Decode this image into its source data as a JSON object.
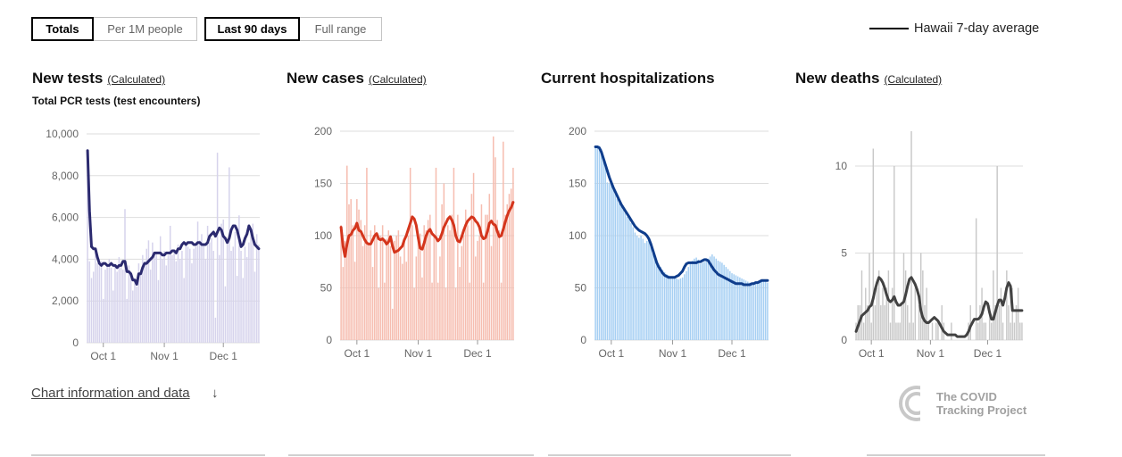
{
  "controls": {
    "metric": {
      "options": [
        "Totals",
        "Per 1M people"
      ],
      "selected": 0
    },
    "range": {
      "options": [
        "Last 90 days",
        "Full range"
      ],
      "selected": 0
    }
  },
  "legend": {
    "label": "Hawaii 7-day average",
    "color": "#000000"
  },
  "footer": {
    "info_link": "Chart information and data",
    "arrow": "↓",
    "brand": "The COVID Tracking Project"
  },
  "chart_data": [
    {
      "id": "tests",
      "type": "bar",
      "title": "New tests",
      "note": "(Calculated)",
      "subtitle": "Total PCR tests (test encounters)",
      "ylim": [
        0,
        10000
      ],
      "yticks": [
        0,
        2000,
        4000,
        6000,
        8000,
        10000
      ],
      "ytick_labels": [
        "0",
        "2,000",
        "4,000",
        "6,000",
        "8,000",
        "10,000"
      ],
      "xticks": [
        {
          "day": 8,
          "label": "Oct 1"
        },
        {
          "day": 39,
          "label": "Nov 1"
        },
        {
          "day": 69,
          "label": "Dec 1"
        }
      ],
      "bar_color": "#d6d3ec",
      "line_color": "#2b2a6f",
      "values": [
        9200,
        3900,
        3100,
        3400,
        4400,
        3800,
        3700,
        3900,
        2100,
        3500,
        3700,
        4000,
        3600,
        2500,
        3700,
        3400,
        4100,
        3800,
        3500,
        6400,
        2100,
        3700,
        3200,
        2500,
        3100,
        2700,
        3800,
        3300,
        4200,
        3900,
        4500,
        4900,
        3500,
        4800,
        4300,
        4300,
        3000,
        5100,
        4000,
        4400,
        3700,
        4200,
        5600,
        4200,
        4300,
        3900,
        4700,
        4000,
        4400,
        3100,
        4700,
        4600,
        4500,
        3800,
        4500,
        4600,
        5800,
        4900,
        5200,
        4700,
        4000,
        5600,
        4800,
        5000,
        4400,
        1200,
        9100,
        4200,
        5700,
        5900,
        2700,
        4800,
        8400,
        4400,
        4600,
        5300,
        3200,
        6100,
        4400,
        3100,
        4600,
        4100,
        4800,
        5200,
        5700,
        3400,
        5200,
        4700
      ],
      "avg": [
        9200,
        6300,
        4600,
        4500,
        4500,
        4100,
        3800,
        3700,
        3800,
        3800,
        3700,
        3700,
        3800,
        3700,
        3700,
        3600,
        3700,
        3700,
        3900,
        3900,
        3400,
        3400,
        3300,
        3000,
        3000,
        2800,
        3300,
        3300,
        3600,
        3800,
        3800,
        3900,
        4000,
        4100,
        4300,
        4300,
        4300,
        4300,
        4200,
        4200,
        4300,
        4300,
        4300,
        4400,
        4400,
        4300,
        4500,
        4500,
        4700,
        4800,
        4700,
        4800,
        4800,
        4800,
        4700,
        4700,
        4800,
        4800,
        4700,
        4700,
        4700,
        4800,
        5100,
        5200,
        5300,
        5100,
        5300,
        5500,
        5400,
        5100,
        5000,
        4800,
        5000,
        5400,
        5600,
        5600,
        5400,
        5000,
        4600,
        4700,
        5000,
        5200,
        5600,
        5400,
        5000,
        4700,
        4600,
        4500
      ]
    },
    {
      "id": "cases",
      "type": "bar",
      "title": "New cases",
      "note": "(Calculated)",
      "ylim": [
        0,
        200
      ],
      "yticks": [
        0,
        50,
        100,
        150,
        200
      ],
      "ytick_labels": [
        "0",
        "50",
        "100",
        "150",
        "200"
      ],
      "xticks": [
        {
          "day": 8,
          "label": "Oct 1"
        },
        {
          "day": 39,
          "label": "Nov 1"
        },
        {
          "day": 69,
          "label": "Dec 1"
        }
      ],
      "bar_color": "#f6bdb0",
      "line_color": "#d4351c",
      "values": [
        110,
        70,
        95,
        167,
        130,
        135,
        110,
        75,
        135,
        125,
        115,
        90,
        110,
        165,
        92,
        105,
        70,
        110,
        100,
        50,
        100,
        110,
        55,
        97,
        105,
        90,
        30,
        95,
        100,
        105,
        80,
        73,
        95,
        75,
        100,
        165,
        110,
        50,
        80,
        95,
        102,
        60,
        110,
        105,
        115,
        120,
        55,
        100,
        165,
        55,
        80,
        130,
        150,
        50,
        110,
        105,
        120,
        165,
        50,
        120,
        70,
        90,
        100,
        125,
        110,
        55,
        140,
        160,
        80,
        95,
        100,
        130,
        55,
        120,
        120,
        140,
        90,
        195,
        175,
        115,
        105,
        55,
        190,
        120,
        130,
        140,
        145,
        165
      ],
      "avg": [
        108,
        90,
        80,
        92,
        100,
        101,
        105,
        107,
        112,
        105,
        104,
        100,
        96,
        93,
        92,
        92,
        96,
        100,
        102,
        97,
        96,
        97,
        95,
        92,
        94,
        99,
        90,
        84,
        85,
        86,
        88,
        90,
        96,
        100,
        106,
        112,
        118,
        116,
        110,
        98,
        88,
        87,
        93,
        100,
        104,
        106,
        102,
        100,
        98,
        95,
        97,
        102,
        108,
        112,
        116,
        118,
        115,
        110,
        100,
        95,
        94,
        99,
        105,
        110,
        114,
        116,
        118,
        117,
        114,
        112,
        108,
        100,
        97,
        98,
        104,
        112,
        114,
        111,
        110,
        104,
        99,
        100,
        106,
        113,
        119,
        124,
        127,
        132
      ]
    },
    {
      "id": "hospitalizations",
      "type": "bar",
      "title": "Current hospitalizations",
      "ylim": [
        0,
        200
      ],
      "yticks": [
        0,
        50,
        100,
        150,
        200
      ],
      "ytick_labels": [
        "0",
        "50",
        "100",
        "150",
        "200"
      ],
      "xticks": [
        {
          "day": 8,
          "label": "Oct 1"
        },
        {
          "day": 39,
          "label": "Nov 1"
        },
        {
          "day": 69,
          "label": "Dec 1"
        }
      ],
      "bar_color": "#a6cff3",
      "line_color": "#0f3d8c",
      "values": [
        186,
        186,
        186,
        183,
        175,
        167,
        151,
        150,
        150,
        148,
        140,
        135,
        131,
        128,
        125,
        122,
        118,
        116,
        112,
        108,
        103,
        100,
        98,
        100,
        97,
        93,
        95,
        97,
        89,
        83,
        78,
        75,
        72,
        70,
        67,
        65,
        63,
        62,
        61,
        60,
        60,
        59,
        58,
        59,
        60,
        63,
        66,
        70,
        74,
        76,
        78,
        79,
        77,
        73,
        74,
        75,
        76,
        78,
        80,
        82,
        80,
        78,
        76,
        75,
        74,
        72,
        70,
        68,
        66,
        64,
        63,
        62,
        61,
        60,
        59,
        58,
        57,
        56,
        55,
        54,
        55,
        56,
        55,
        55,
        58,
        57,
        56,
        55
      ],
      "avg": [
        185,
        185,
        184,
        180,
        174,
        168,
        162,
        156,
        151,
        146,
        142,
        138,
        134,
        130,
        127,
        124,
        121,
        118,
        115,
        112,
        109,
        107,
        105,
        104,
        103,
        102,
        100,
        97,
        92,
        86,
        80,
        74,
        70,
        67,
        64,
        62,
        61,
        60,
        60,
        60,
        60,
        61,
        62,
        64,
        66,
        70,
        73,
        74,
        74,
        74,
        74,
        74,
        75,
        75,
        76,
        77,
        77,
        76,
        73,
        70,
        67,
        65,
        63,
        62,
        61,
        60,
        59,
        58,
        57,
        56,
        55,
        54,
        54,
        54,
        54,
        53,
        53,
        53,
        53,
        54,
        54,
        55,
        55,
        56,
        57,
        57,
        57,
        57
      ]
    },
    {
      "id": "deaths",
      "type": "bar",
      "title": "New deaths",
      "note": "(Calculated)",
      "ylim": [
        0,
        12
      ],
      "yticks": [
        0,
        5,
        10
      ],
      "ytick_labels": [
        "0",
        "5",
        "10"
      ],
      "xticks": [
        {
          "day": 8,
          "label": "Oct 1"
        },
        {
          "day": 39,
          "label": "Nov 1"
        },
        {
          "day": 69,
          "label": "Dec 1"
        }
      ],
      "bar_color": "#c8c8c8",
      "line_color": "#424242",
      "values": [
        1,
        2,
        2,
        4,
        1,
        3,
        2,
        5,
        1,
        11,
        2,
        3,
        4,
        2,
        3,
        2,
        3,
        4,
        1,
        3,
        10,
        1,
        1,
        1,
        2,
        5,
        4,
        2,
        1,
        14,
        1,
        3,
        0,
        2,
        5,
        4,
        2,
        3,
        1,
        0,
        1,
        0,
        1,
        1,
        0,
        2,
        1,
        0,
        0,
        0,
        1,
        0,
        0,
        0,
        0,
        0,
        0,
        0,
        0,
        1,
        2,
        0,
        0,
        7,
        1,
        2,
        3,
        1,
        1,
        0,
        2,
        1,
        4,
        2,
        10,
        2,
        3,
        1,
        0,
        4,
        2,
        1,
        3,
        1,
        2,
        3,
        1,
        1
      ],
      "avg": [
        0.5,
        0.8,
        1.1,
        1.4,
        1.5,
        1.6,
        1.7,
        1.9,
        2.0,
        2.4,
        2.9,
        3.3,
        3.6,
        3.5,
        3.3,
        3.0,
        2.6,
        2.3,
        2.2,
        2.3,
        2.5,
        2.2,
        2.0,
        2.0,
        2.1,
        2.2,
        2.6,
        3.1,
        3.5,
        3.6,
        3.4,
        3.2,
        2.9,
        2.5,
        1.7,
        1.3,
        1.1,
        1.0,
        1.0,
        1.1,
        1.2,
        1.3,
        1.2,
        1.1,
        0.9,
        0.7,
        0.5,
        0.4,
        0.3,
        0.3,
        0.3,
        0.3,
        0.3,
        0.2,
        0.2,
        0.2,
        0.2,
        0.2,
        0.3,
        0.5,
        0.8,
        1.0,
        1.2,
        1.2,
        1.2,
        1.3,
        1.5,
        1.9,
        2.2,
        2.1,
        1.6,
        1.2,
        1.2,
        1.6,
        2.0,
        2.3,
        2.3,
        2.0,
        2.4,
        3.0,
        3.3,
        3.1,
        1.7,
        1.7,
        1.7,
        1.7,
        1.7,
        1.7
      ]
    }
  ]
}
